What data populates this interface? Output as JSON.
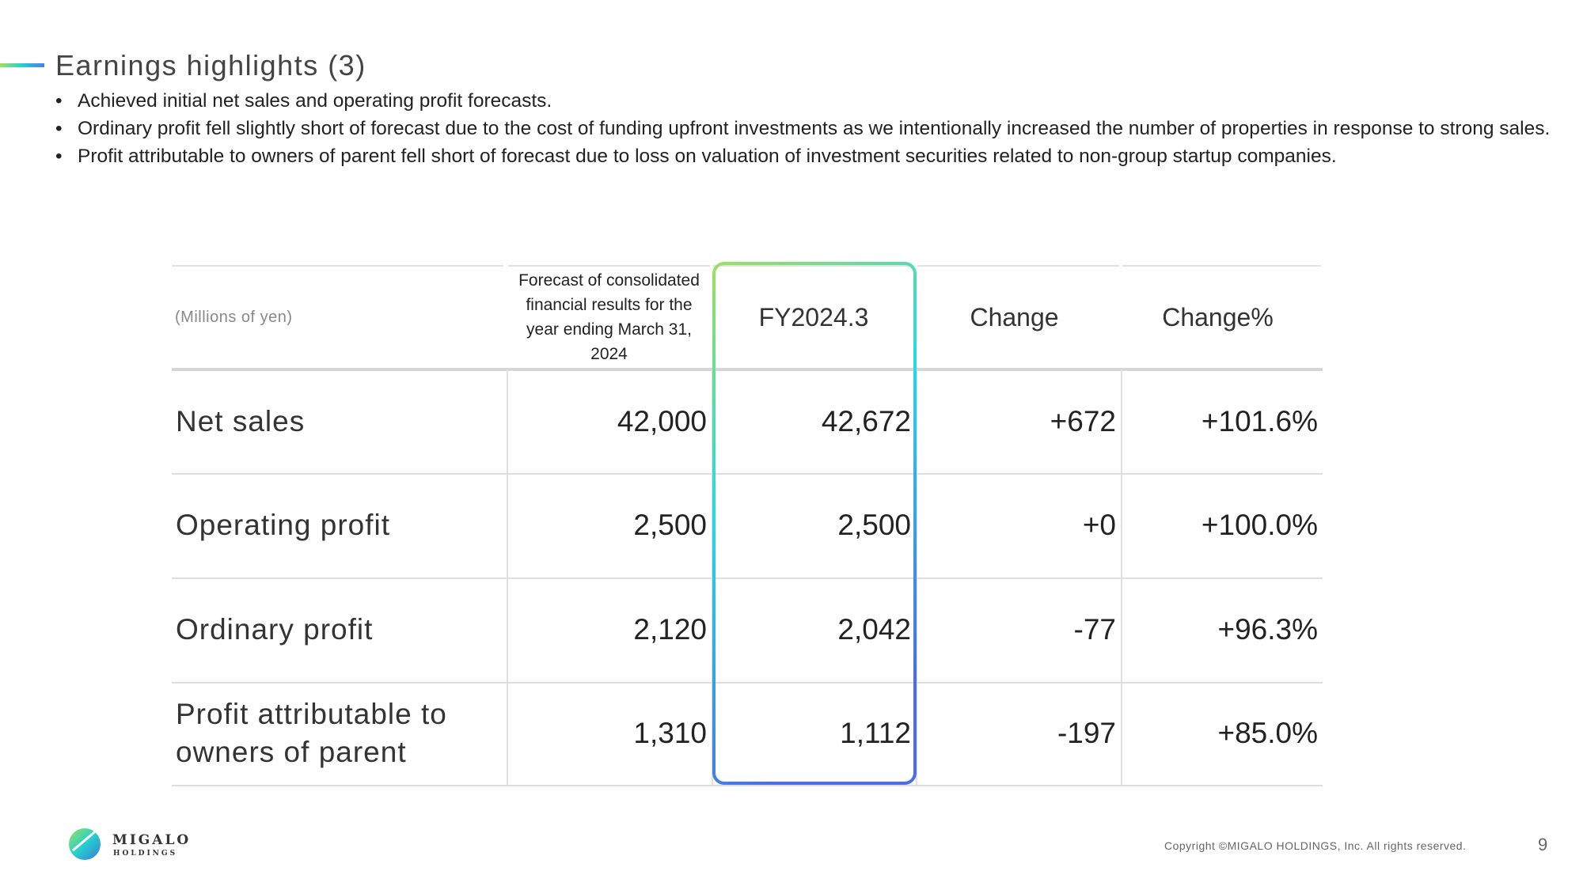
{
  "header": {
    "title": "Earnings highlights (3)"
  },
  "bullets": [
    "Achieved initial net sales and operating profit forecasts.",
    "Ordinary profit fell slightly short of forecast due to the cost of funding upfront investments as we intentionally increased the number of properties in response to strong sales.",
    "Profit attributable to owners of parent fell short of forecast due to loss on valuation of investment securities related to non-group startup companies."
  ],
  "table": {
    "unit": "(Millions of yen)",
    "columns": [
      "Forecast of consolidated financial results for the year ending March 31, 2024",
      "FY2024.3",
      "Change",
      "Change%"
    ],
    "rows": [
      [
        "Net sales",
        "42,000",
        "42,672",
        "+672",
        "+101.6%"
      ],
      [
        "Operating profit",
        "2,500",
        "2,500",
        "+0",
        "+100.0%"
      ],
      [
        "Ordinary profit",
        "2,120",
        "2,042",
        "-77",
        "+96.3%"
      ],
      [
        "Profit attributable to owners of parent",
        "1,310",
        "1,112",
        "-197",
        "+85.0%"
      ]
    ]
  },
  "footer": {
    "logo": "MIGALO",
    "logo_sub": "HOLDINGS",
    "copyright": "Copyright ©MIGALO HOLDINGS, Inc. All rights reserved.",
    "page": "9"
  }
}
